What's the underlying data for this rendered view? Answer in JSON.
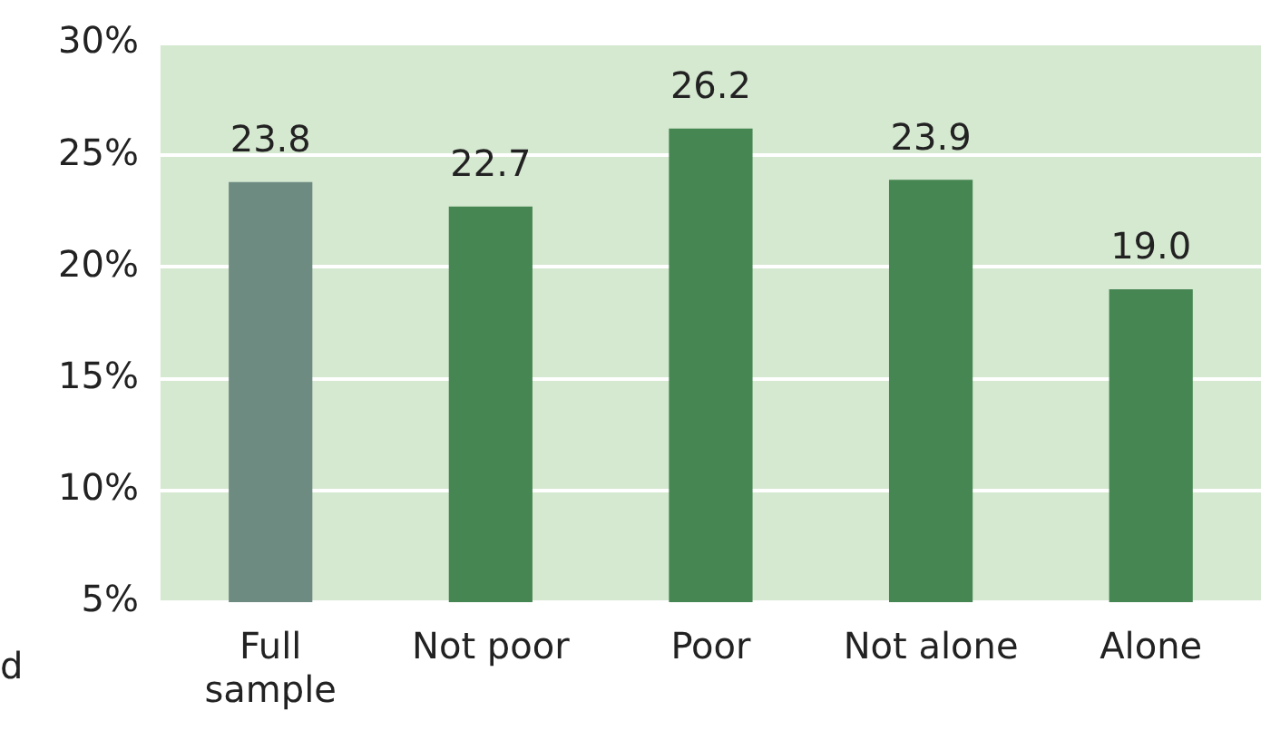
{
  "chart_data": {
    "type": "bar",
    "categories": [
      "Full sample",
      "Not poor",
      "Poor",
      "Not alone",
      "Alone"
    ],
    "values": [
      23.8,
      22.7,
      26.2,
      23.9,
      19.0
    ],
    "value_labels": [
      "23.8",
      "22.7",
      "26.2",
      "23.9",
      "19.0"
    ],
    "colors": [
      "#6e8b82",
      "#468652",
      "#468652",
      "#468652",
      "#468652"
    ],
    "ylim": [
      5,
      30
    ],
    "yticks": [
      {
        "value": 5,
        "label": "5%"
      },
      {
        "value": 10,
        "label": "10%"
      },
      {
        "value": 15,
        "label": "15%"
      },
      {
        "value": 20,
        "label": "20%"
      },
      {
        "value": 25,
        "label": "25%"
      },
      {
        "value": 30,
        "label": "30%"
      }
    ],
    "grid": "y",
    "legend": false,
    "annotations": [
      "d"
    ]
  }
}
